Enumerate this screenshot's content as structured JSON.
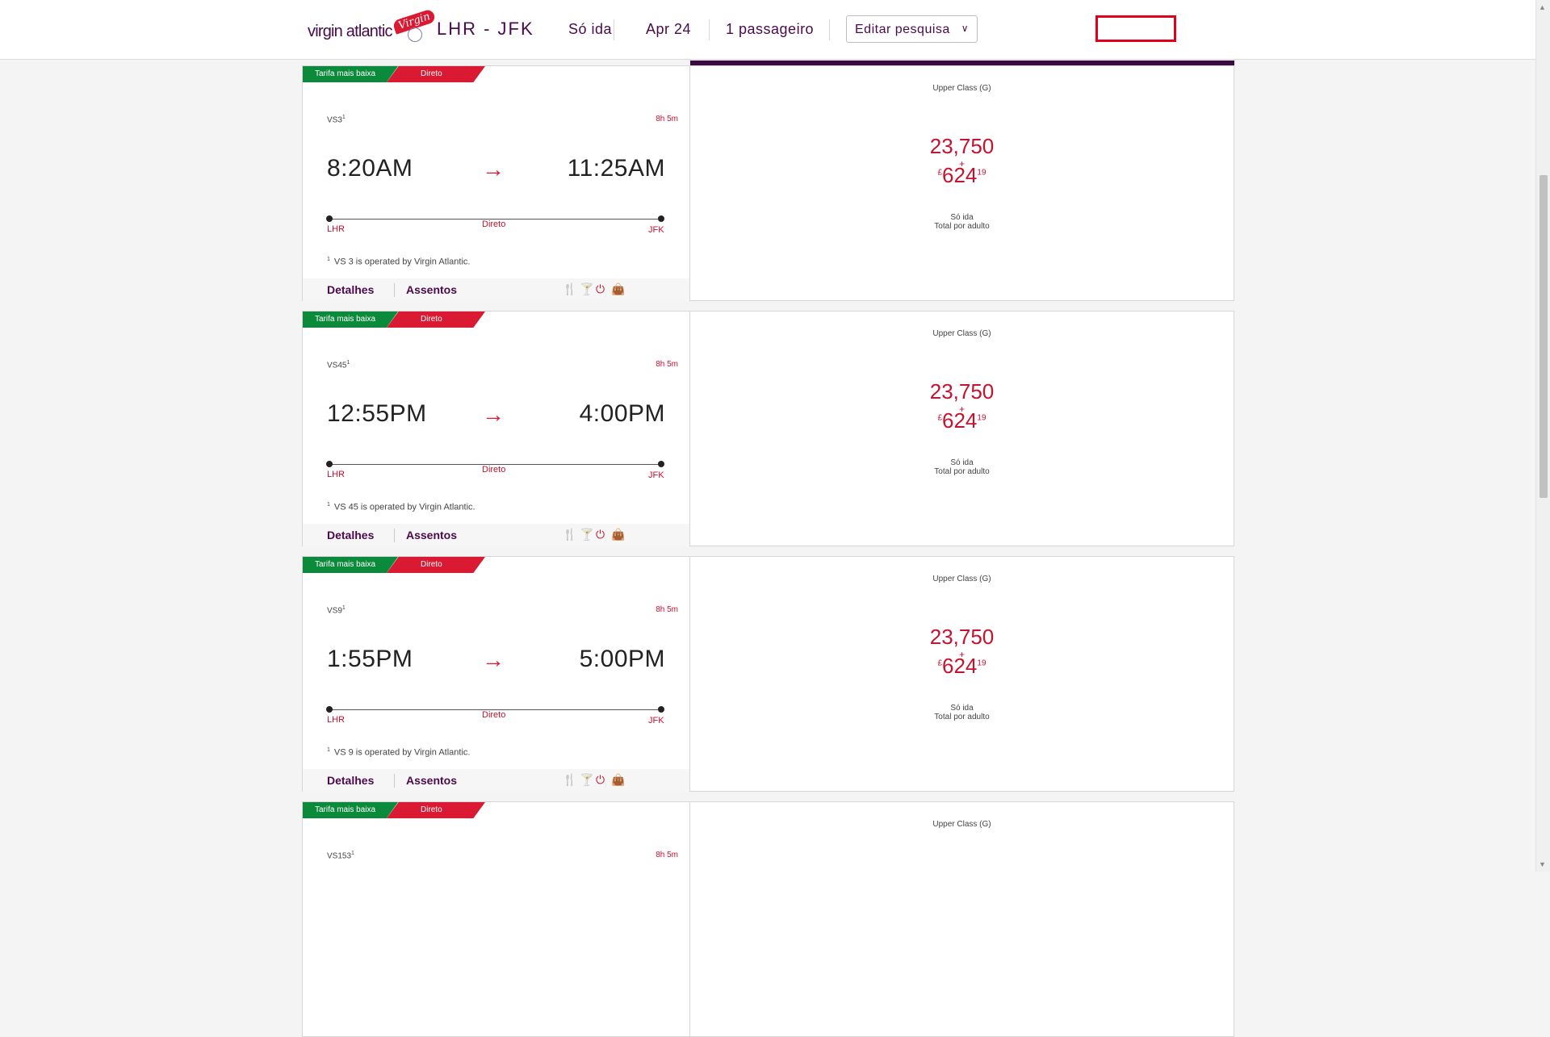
{
  "header": {
    "logo_text": "virgin atlantic",
    "logo_script": "Virgin",
    "route": "LHR - JFK",
    "trip_type": "Só ida",
    "date": "Apr 24",
    "passengers": "1 passageiro",
    "edit_label": "Editar pesquisa",
    "chevron": "∨"
  },
  "tags": {
    "cheapest": "Tarifa mais baixa",
    "direct": "Direto"
  },
  "labels": {
    "details": "Detalhes",
    "seats": "Assentos",
    "direct": "Direto",
    "plus": "+",
    "one_way": "Só ida",
    "per_adult": "Total por adulto",
    "arrow": "→",
    "currency": "£"
  },
  "flights": [
    {
      "flight": "VS3",
      "sup": "1",
      "duration": "8h 5m",
      "depart": "8:20AM",
      "arrive": "11:25AM",
      "from": "LHR",
      "to": "JFK",
      "note": "VS 3 is operated by Virgin Atlantic.",
      "cabin": "Upper Class (G)",
      "points": "23,750",
      "price": "624",
      "pence": "19"
    },
    {
      "flight": "VS45",
      "sup": "1",
      "duration": "8h 5m",
      "depart": "12:55PM",
      "arrive": "4:00PM",
      "from": "LHR",
      "to": "JFK",
      "note": "VS 45 is operated by Virgin Atlantic.",
      "cabin": "Upper Class (G)",
      "points": "23,750",
      "price": "624",
      "pence": "19"
    },
    {
      "flight": "VS9",
      "sup": "1",
      "duration": "8h 5m",
      "depart": "1:55PM",
      "arrive": "5:00PM",
      "from": "LHR",
      "to": "JFK",
      "note": "VS 9 is operated by Virgin Atlantic.",
      "cabin": "Upper Class (G)",
      "points": "23,750",
      "price": "624",
      "pence": "19"
    },
    {
      "flight": "VS153",
      "sup": "1",
      "duration": "8h 5m",
      "cabin": "Upper Class (G)"
    }
  ],
  "icons": [
    "meal-icon",
    "drink-icon",
    "power-icon",
    "bag-icon"
  ],
  "colors": {
    "brand_purple": "#4a0a4c",
    "brand_red": "#da1a32",
    "green": "#0b8a3c"
  }
}
